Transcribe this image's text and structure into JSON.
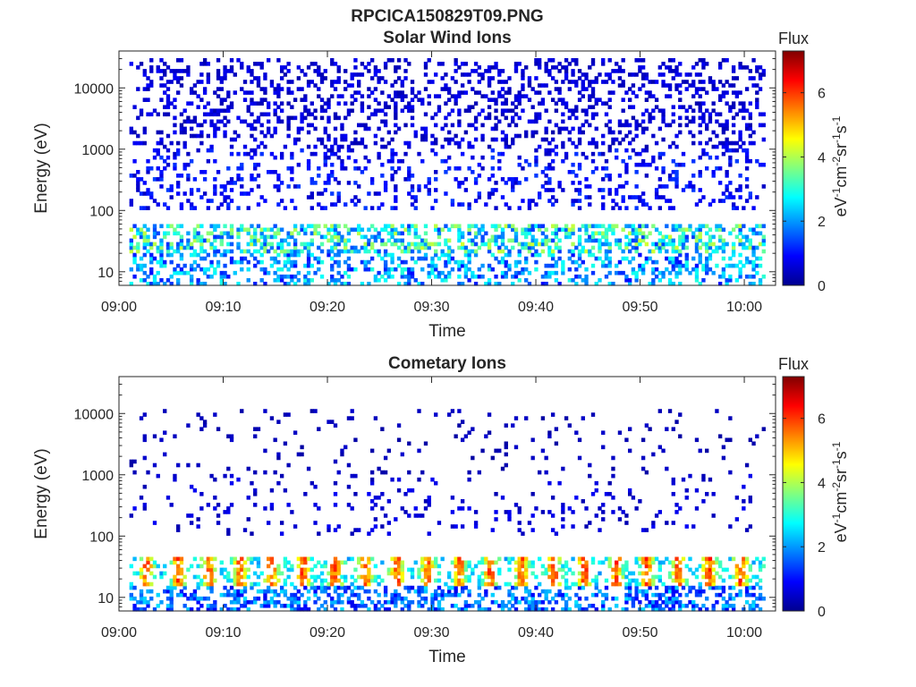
{
  "figure": {
    "title_line1": "RPCICA150829T09.PNG"
  },
  "colors": {
    "colormap": [
      "#00008f",
      "#0000ff",
      "#0080ff",
      "#00ffff",
      "#80ff80",
      "#ffff00",
      "#ff8000",
      "#ff0000",
      "#800000"
    ],
    "axis": "#262626"
  },
  "chart_data": [
    {
      "type": "heatmap",
      "title": "Solar Wind Ions",
      "xlabel": "Time",
      "ylabel": "Energy (eV)",
      "x_scale": "time",
      "xlim": [
        "09:00",
        "10:03"
      ],
      "xticks": [
        "09:00",
        "09:10",
        "09:20",
        "09:30",
        "09:40",
        "09:50",
        "10:00"
      ],
      "y_scale": "log",
      "ylim": [
        6,
        40000
      ],
      "yticks": [
        10,
        100,
        1000,
        10000
      ],
      "ytick_labels": [
        "10",
        "100",
        "1000",
        "10000"
      ],
      "data_start": "09:01",
      "data_end": "10:02",
      "colorbar": {
        "title": "Flux",
        "label": "eV-1cm-2sr-1s-1",
        "range": [
          0,
          7.3
        ],
        "ticks": [
          0,
          2,
          4,
          6
        ],
        "tick_labels": [
          "0",
          "2",
          "4",
          "6"
        ]
      },
      "features": [
        {
          "energy_range": [
            1000,
            30000
          ],
          "typical_flux": 0.5,
          "coverage": 0.25
        },
        {
          "energy_range": [
            100,
            1000
          ],
          "typical_flux": 0.8,
          "coverage": 0.2
        },
        {
          "energy_range": [
            20,
            60
          ],
          "typical_flux": 2.5,
          "coverage": 0.5
        },
        {
          "energy_range": [
            6,
            20
          ],
          "typical_flux": 1.8,
          "coverage": 0.35
        }
      ]
    },
    {
      "type": "heatmap",
      "title": "Cometary Ions",
      "xlabel": "Time",
      "ylabel": "Energy (eV)",
      "x_scale": "time",
      "xlim": [
        "09:00",
        "10:03"
      ],
      "xticks": [
        "09:00",
        "09:10",
        "09:20",
        "09:30",
        "09:40",
        "09:50",
        "10:00"
      ],
      "y_scale": "log",
      "ylim": [
        6,
        40000
      ],
      "yticks": [
        10,
        100,
        1000,
        10000
      ],
      "ytick_labels": [
        "10",
        "100",
        "1000",
        "10000"
      ],
      "data_start": "09:01",
      "data_end": "10:02",
      "colorbar": {
        "title": "Flux",
        "label": "eV-1cm-2sr-1s-1",
        "range": [
          0,
          7.3
        ],
        "ticks": [
          0,
          2,
          4,
          6
        ],
        "tick_labels": [
          "0",
          "2",
          "4",
          "6"
        ]
      },
      "features": [
        {
          "energy_range": [
            1000,
            12000
          ],
          "typical_flux": 0.3,
          "coverage": 0.05
        },
        {
          "energy_range": [
            100,
            1000
          ],
          "typical_flux": 0.5,
          "coverage": 0.08
        },
        {
          "energy_range": [
            15,
            45
          ],
          "typical_flux": 5.5,
          "coverage": 0.7,
          "period_min": 3
        },
        {
          "energy_range": [
            6,
            15
          ],
          "typical_flux": 1.5,
          "coverage": 0.45
        }
      ]
    }
  ]
}
